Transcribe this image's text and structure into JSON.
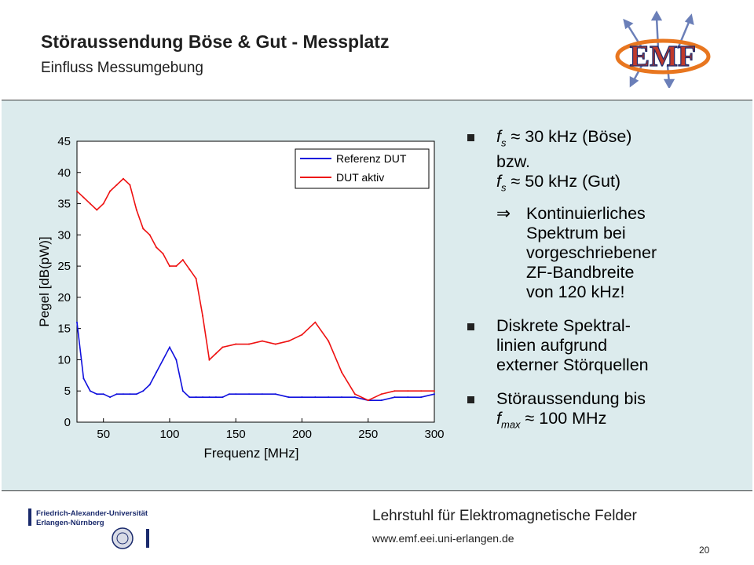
{
  "header": {
    "title": "Störaussendung Böse & Gut - Messplatz",
    "subtitle": "Einfluss Messumgebung",
    "logo_text": "EMF"
  },
  "colors": {
    "reference": "#1010dd",
    "dut": "#ee1111",
    "panel": "#dcebed"
  },
  "chart_data": {
    "type": "line",
    "xlabel": "Frequenz [MHz]",
    "ylabel": "Pegel [dB(pW)]",
    "xlim": [
      30,
      300
    ],
    "ylim": [
      0,
      45
    ],
    "xticks": [
      50,
      100,
      150,
      200,
      250,
      300
    ],
    "yticks": [
      0,
      5,
      10,
      15,
      20,
      25,
      30,
      35,
      40,
      45
    ],
    "legend": "top-right",
    "grid": false,
    "series": [
      {
        "name": "Referenz DUT",
        "x": [
          30,
          35,
          40,
          45,
          50,
          55,
          60,
          65,
          70,
          75,
          80,
          85,
          90,
          95,
          100,
          105,
          110,
          115,
          120,
          125,
          130,
          135,
          140,
          145,
          150,
          160,
          170,
          180,
          190,
          200,
          210,
          220,
          230,
          240,
          250,
          260,
          270,
          280,
          290,
          300
        ],
        "y": [
          16,
          7,
          5,
          4.5,
          4.5,
          4,
          4.5,
          4.5,
          4.5,
          4.5,
          5,
          6,
          8,
          10,
          12,
          10,
          5,
          4,
          4,
          4,
          4,
          4,
          4,
          4.5,
          4.5,
          4.5,
          4.5,
          4.5,
          4,
          4,
          4,
          4,
          4,
          4,
          3.5,
          3.5,
          4,
          4,
          4,
          4.5
        ]
      },
      {
        "name": "DUT aktiv",
        "x": [
          30,
          35,
          40,
          45,
          50,
          55,
          60,
          65,
          70,
          75,
          80,
          85,
          90,
          95,
          100,
          105,
          110,
          115,
          120,
          125,
          130,
          135,
          140,
          150,
          160,
          170,
          180,
          190,
          200,
          210,
          220,
          230,
          240,
          250,
          260,
          270,
          280,
          290,
          300
        ],
        "y": [
          37,
          36,
          35,
          34,
          35,
          37,
          38,
          39,
          38,
          34,
          31,
          30,
          28,
          27,
          25,
          25,
          26,
          24.5,
          23,
          17,
          10,
          11,
          12,
          12.5,
          12.5,
          13,
          12.5,
          13,
          14,
          16,
          13,
          8,
          4.5,
          3.5,
          4.5,
          5,
          5,
          5,
          5
        ]
      }
    ]
  },
  "bullets": {
    "b1_line1_sym": "f",
    "b1_line1_sub": "s",
    "b1_line1_rest": " ≈ 30 kHz (Böse)",
    "b1_line2": "bzw.",
    "b1_line3_sym": "f",
    "b1_line3_sub": "s",
    "b1_line3_rest": " ≈ 50 kHz (Gut)",
    "b1_arrow": "⇒",
    "b1_sub1": "Kontinuierliches",
    "b1_sub2": "Spektrum bei",
    "b1_sub3": "vorgeschriebener",
    "b1_sub4": "ZF-Bandbreite",
    "b1_sub5": "von 120 kHz!",
    "b2_line1": "Diskrete Spektral-",
    "b2_line2": "linien aufgrund",
    "b2_line3": "externer Störquellen",
    "b3_line1": "Störaussendung bis",
    "b3_line2_sym": "f",
    "b3_line2_sub": "max",
    "b3_line2_rest": " ≈ 100 MHz"
  },
  "footer": {
    "university_line1": "Friedrich-Alexander-Universität",
    "university_line2": "Erlangen-Nürnberg",
    "chair": "Lehrstuhl für Elektromagnetische Felder",
    "url": "www.emf.eei.uni-erlangen.de",
    "page": "20"
  }
}
